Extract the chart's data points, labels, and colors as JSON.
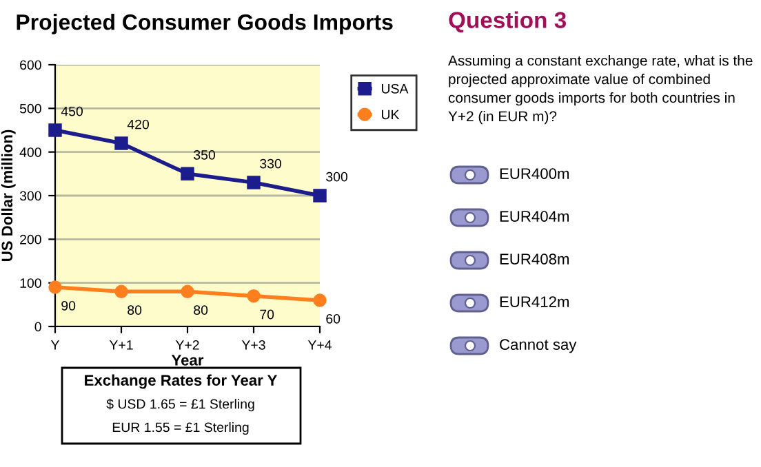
{
  "chart_data": [
    {
      "type": "line",
      "title": "Projected Consumer Goods Imports",
      "xlabel": "Year",
      "ylabel": "US Dollar (million)",
      "categories": [
        "Y",
        "Y+1",
        "Y+2",
        "Y+3",
        "Y+4"
      ],
      "series": [
        {
          "name": "USA",
          "color": "#1c1c8c",
          "marker": "square",
          "values": [
            450,
            420,
            350,
            330,
            300
          ]
        },
        {
          "name": "UK",
          "color": "#ff7f1e",
          "marker": "circle",
          "values": [
            90,
            80,
            80,
            70,
            60
          ]
        }
      ],
      "ylim": [
        0,
        600
      ],
      "yticks": [
        0,
        100,
        200,
        300,
        400,
        500,
        600
      ],
      "grid": "y",
      "legend": "top right",
      "data_labels": true,
      "annotations": [
        "Exchange Rates for Year Y",
        "$ USD 1.65 = £1 Sterling",
        "EUR 1.55 = £1 Sterling"
      ]
    },
    {
      "type": "other",
      "title": "Question 3",
      "annotations": [
        "Assuming a constant exchange rate, what is the projected approximate value of combined consumer goods imports for both countries in Y+2 (in EUR m)?",
        "EUR400m",
        "EUR404m",
        "EUR408m",
        "EUR412m",
        "Cannot say"
      ]
    }
  ]
}
